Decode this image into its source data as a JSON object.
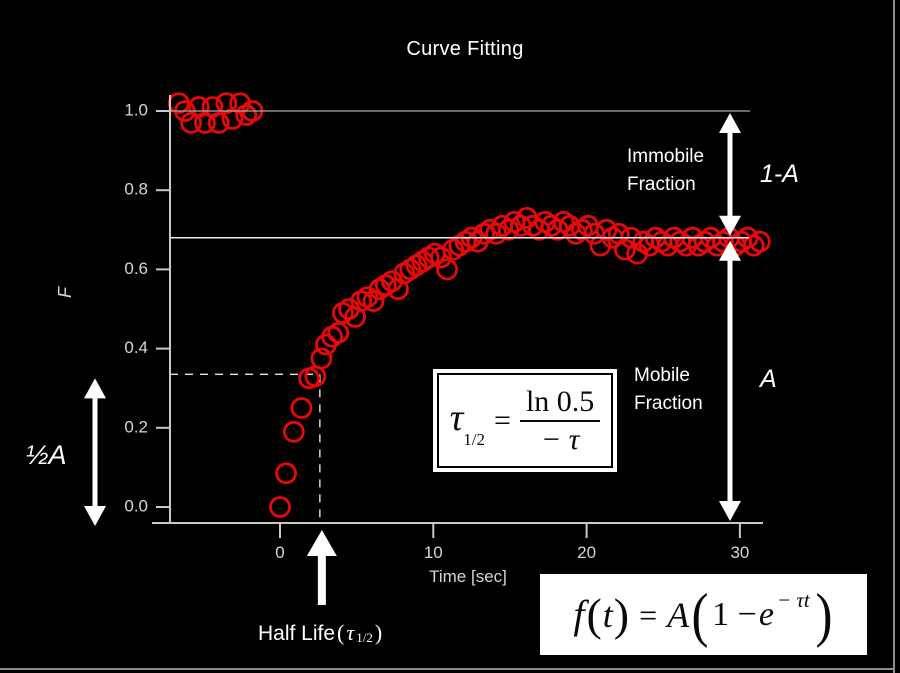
{
  "slide": {
    "background": "#000000"
  },
  "chart_data": {
    "type": "scatter",
    "title": "Curve Fitting",
    "xlabel": "Time [sec]",
    "ylabel": "F",
    "xlim": [
      -8.3,
      31.8
    ],
    "ylim": [
      -0.04,
      1.08
    ],
    "x_ticks": [
      "0",
      "10",
      "20",
      "30"
    ],
    "y_ticks": [
      "0.0",
      "0.2",
      "0.4",
      "0.6",
      "0.8",
      "1.0"
    ],
    "grid": false,
    "legend": "none",
    "marker": {
      "shape": "open-circle",
      "color": "#e80808",
      "radius_px": 9.5,
      "stroke_px": 2.8
    },
    "reference_lines": [
      {
        "y": 1.0
      },
      {
        "y": 0.68
      }
    ],
    "half_life_guide": {
      "t": 2.6,
      "F": 0.335,
      "style": "dashed"
    },
    "series": [
      {
        "name": "pre-bleach",
        "points": [
          [
            -6.6,
            1.02
          ],
          [
            -6.2,
            1.0
          ],
          [
            -5.8,
            0.97
          ],
          [
            -5.3,
            1.01
          ],
          [
            -4.9,
            0.97
          ],
          [
            -4.4,
            1.01
          ],
          [
            -4.0,
            0.97
          ],
          [
            -3.5,
            1.02
          ],
          [
            -3.1,
            0.98
          ],
          [
            -2.6,
            1.02
          ],
          [
            -2.2,
            0.99
          ],
          [
            -1.8,
            1.0
          ]
        ]
      },
      {
        "name": "recovery",
        "points": [
          [
            0.0,
            0.0
          ],
          [
            0.4,
            0.085
          ],
          [
            0.9,
            0.19
          ],
          [
            1.4,
            0.25
          ],
          [
            1.9,
            0.325
          ],
          [
            2.3,
            0.33
          ],
          [
            2.7,
            0.375
          ],
          [
            3.0,
            0.41
          ],
          [
            3.4,
            0.43
          ],
          [
            3.8,
            0.44
          ],
          [
            4.1,
            0.49
          ],
          [
            4.5,
            0.5
          ],
          [
            4.9,
            0.48
          ],
          [
            5.3,
            0.52
          ],
          [
            5.7,
            0.53
          ],
          [
            6.1,
            0.52
          ],
          [
            6.5,
            0.55
          ],
          [
            6.9,
            0.56
          ],
          [
            7.3,
            0.57
          ],
          [
            7.7,
            0.55
          ],
          [
            8.1,
            0.59
          ],
          [
            8.5,
            0.6
          ],
          [
            8.9,
            0.61
          ],
          [
            9.3,
            0.62
          ],
          [
            9.7,
            0.63
          ],
          [
            10.1,
            0.64
          ],
          [
            10.5,
            0.63
          ],
          [
            10.9,
            0.6
          ],
          [
            11.3,
            0.65
          ],
          [
            11.7,
            0.66
          ],
          [
            12.1,
            0.67
          ],
          [
            12.5,
            0.68
          ],
          [
            12.9,
            0.67
          ],
          [
            13.3,
            0.69
          ],
          [
            13.7,
            0.7
          ],
          [
            14.1,
            0.69
          ],
          [
            14.5,
            0.71
          ],
          [
            14.9,
            0.7
          ],
          [
            15.3,
            0.72
          ],
          [
            15.7,
            0.71
          ],
          [
            16.1,
            0.73
          ],
          [
            16.5,
            0.71
          ],
          [
            16.9,
            0.7
          ],
          [
            17.3,
            0.72
          ],
          [
            17.7,
            0.71
          ],
          [
            18.1,
            0.7
          ],
          [
            18.5,
            0.72
          ],
          [
            18.9,
            0.71
          ],
          [
            19.3,
            0.69
          ],
          [
            19.7,
            0.7
          ],
          [
            20.1,
            0.71
          ],
          [
            20.5,
            0.69
          ],
          [
            20.9,
            0.66
          ],
          [
            21.3,
            0.7
          ],
          [
            21.7,
            0.68
          ],
          [
            22.1,
            0.69
          ],
          [
            22.5,
            0.65
          ],
          [
            22.9,
            0.68
          ],
          [
            23.3,
            0.64
          ],
          [
            23.7,
            0.67
          ],
          [
            24.1,
            0.66
          ],
          [
            24.5,
            0.68
          ],
          [
            24.9,
            0.67
          ],
          [
            25.3,
            0.66
          ],
          [
            25.7,
            0.68
          ],
          [
            26.1,
            0.67
          ],
          [
            26.5,
            0.66
          ],
          [
            26.9,
            0.68
          ],
          [
            27.3,
            0.66
          ],
          [
            27.7,
            0.67
          ],
          [
            28.1,
            0.68
          ],
          [
            28.5,
            0.66
          ],
          [
            28.9,
            0.67
          ],
          [
            29.3,
            0.68
          ],
          [
            29.7,
            0.66
          ],
          [
            30.1,
            0.67
          ],
          [
            30.5,
            0.68
          ],
          [
            30.9,
            0.66
          ],
          [
            31.3,
            0.67
          ]
        ]
      }
    ]
  },
  "annotations": {
    "immobile_fraction": "Immobile Fraction",
    "one_minus_a": "1-A",
    "mobile_fraction": "Mobile Fraction",
    "a": "A",
    "half_a": "½A",
    "half_life": {
      "prefix": "Half Life",
      "open": "(",
      "tau": "τ",
      "sub": "1/2",
      "close": ")"
    }
  },
  "formulas": {
    "half_life_eq": {
      "lhs": "τ",
      "lhs_sub": "1/2",
      "equals": "=",
      "numerator": "ln 0.5",
      "denominator": "− τ"
    },
    "recovery_eq": {
      "func": "f",
      "open1": "(",
      "arg": "t",
      "close1": ")",
      "equals": "=",
      "coef": "A",
      "open2": "(",
      "body_pre": "1 −",
      "body_e": "e",
      "exponent": "− τt",
      "close2": ")"
    }
  },
  "colors": {
    "background": "#000000",
    "marker": "#e80808",
    "axis": "#c9c9c9",
    "text": "#ffffff",
    "reference_line": "#e6e6e6"
  }
}
